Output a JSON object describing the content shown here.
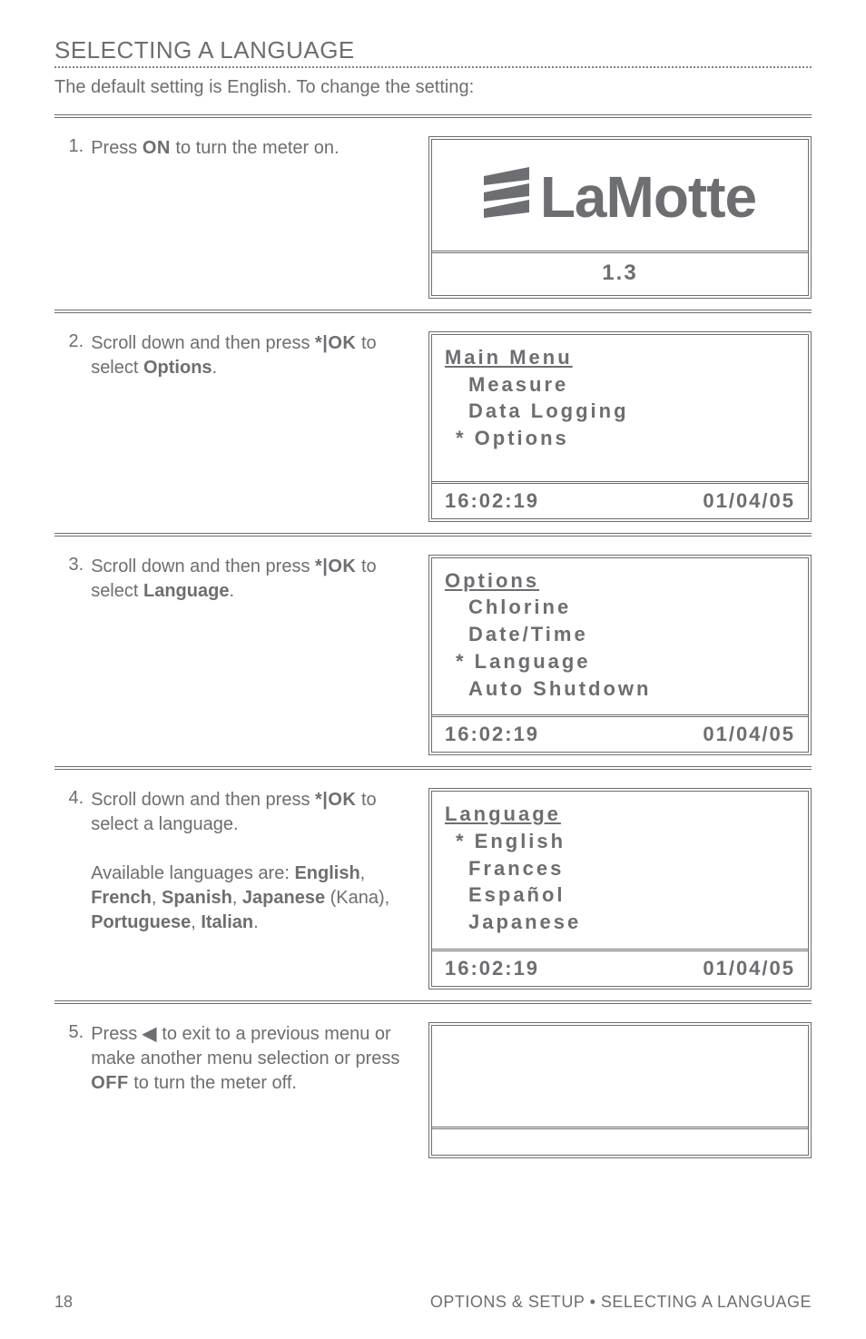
{
  "heading": "SELECTING A LANGUAGE",
  "intro": "The default setting is English. To change the setting:",
  "steps": [
    {
      "num": "1.",
      "text_parts": [
        {
          "t": "Press ",
          "cls": ""
        },
        {
          "t": "ON",
          "cls": "heavy"
        },
        {
          "t": " to turn the meter on.",
          "cls": ""
        }
      ],
      "screen": {
        "type": "logo",
        "version": "1.3"
      }
    },
    {
      "num": "2.",
      "text_parts": [
        {
          "t": "Scroll down and then press ",
          "cls": ""
        },
        {
          "t": "*|OK",
          "cls": "heavy"
        },
        {
          "t": " to select ",
          "cls": ""
        },
        {
          "t": "Options",
          "cls": "bold"
        },
        {
          "t": ".",
          "cls": ""
        }
      ],
      "screen": {
        "type": "menu",
        "title": "Main Menu",
        "lines": [
          {
            "star": false,
            "label": "Measure"
          },
          {
            "star": false,
            "label": "Data Logging"
          },
          {
            "star": true,
            "label": "Options"
          }
        ],
        "status_left": "16:02:19",
        "status_right": "01/04/05",
        "extra_body_space": true
      }
    },
    {
      "num": "3.",
      "text_parts": [
        {
          "t": "Scroll down and then press ",
          "cls": ""
        },
        {
          "t": "*|OK",
          "cls": "heavy"
        },
        {
          "t": " to select ",
          "cls": ""
        },
        {
          "t": "Language",
          "cls": "bold"
        },
        {
          "t": ".",
          "cls": ""
        }
      ],
      "screen": {
        "type": "menu",
        "title": "Options",
        "lines": [
          {
            "star": false,
            "label": "Chlorine"
          },
          {
            "star": false,
            "label": "Date/Time"
          },
          {
            "star": true,
            "label": "Language"
          },
          {
            "star": false,
            "label": "Auto Shutdown"
          }
        ],
        "status_left": "16:02:19",
        "status_right": "01/04/05"
      }
    },
    {
      "num": "4.",
      "text_parts": [
        {
          "t": "Scroll down and then press ",
          "cls": ""
        },
        {
          "t": "*|OK",
          "cls": "heavy"
        },
        {
          "t": " to select a language.",
          "cls": ""
        },
        {
          "t": "\nAvailable languages are: ",
          "cls": ""
        },
        {
          "t": "English",
          "cls": "bold"
        },
        {
          "t": ", ",
          "cls": ""
        },
        {
          "t": "French",
          "cls": "bold"
        },
        {
          "t": ", ",
          "cls": ""
        },
        {
          "t": "Spanish",
          "cls": "bold"
        },
        {
          "t": ", ",
          "cls": ""
        },
        {
          "t": "Japanese",
          "cls": "bold"
        },
        {
          "t": " (Kana), ",
          "cls": ""
        },
        {
          "t": "Portuguese",
          "cls": "bold"
        },
        {
          "t": ", ",
          "cls": ""
        },
        {
          "t": "Italian",
          "cls": "bold"
        },
        {
          "t": ".",
          "cls": ""
        }
      ],
      "screen": {
        "type": "menu",
        "title": "Language",
        "lines": [
          {
            "star": true,
            "label": "English"
          },
          {
            "star": false,
            "label": "Frances"
          },
          {
            "star": false,
            "label": "Español"
          },
          {
            "star": false,
            "label": "Japanese"
          }
        ],
        "status_left": "16:02:19",
        "status_right": "01/04/05"
      }
    },
    {
      "num": "5.",
      "text_parts": [
        {
          "t": "Press ",
          "cls": ""
        },
        {
          "t": "◀",
          "cls": "heavy"
        },
        {
          "t": " to exit to a previous menu or make another menu selection or press ",
          "cls": ""
        },
        {
          "t": "OFF",
          "cls": "heavy"
        },
        {
          "t": " to turn the meter off.",
          "cls": ""
        }
      ],
      "screen": {
        "type": "blank"
      }
    }
  ],
  "footer": {
    "page": "18",
    "crumb": "OPTIONS & SETUP • SELECTING A LANGUAGE"
  },
  "colors": {
    "text": "#6d6e71",
    "border": "#6d6e71",
    "background": "#ffffff"
  }
}
